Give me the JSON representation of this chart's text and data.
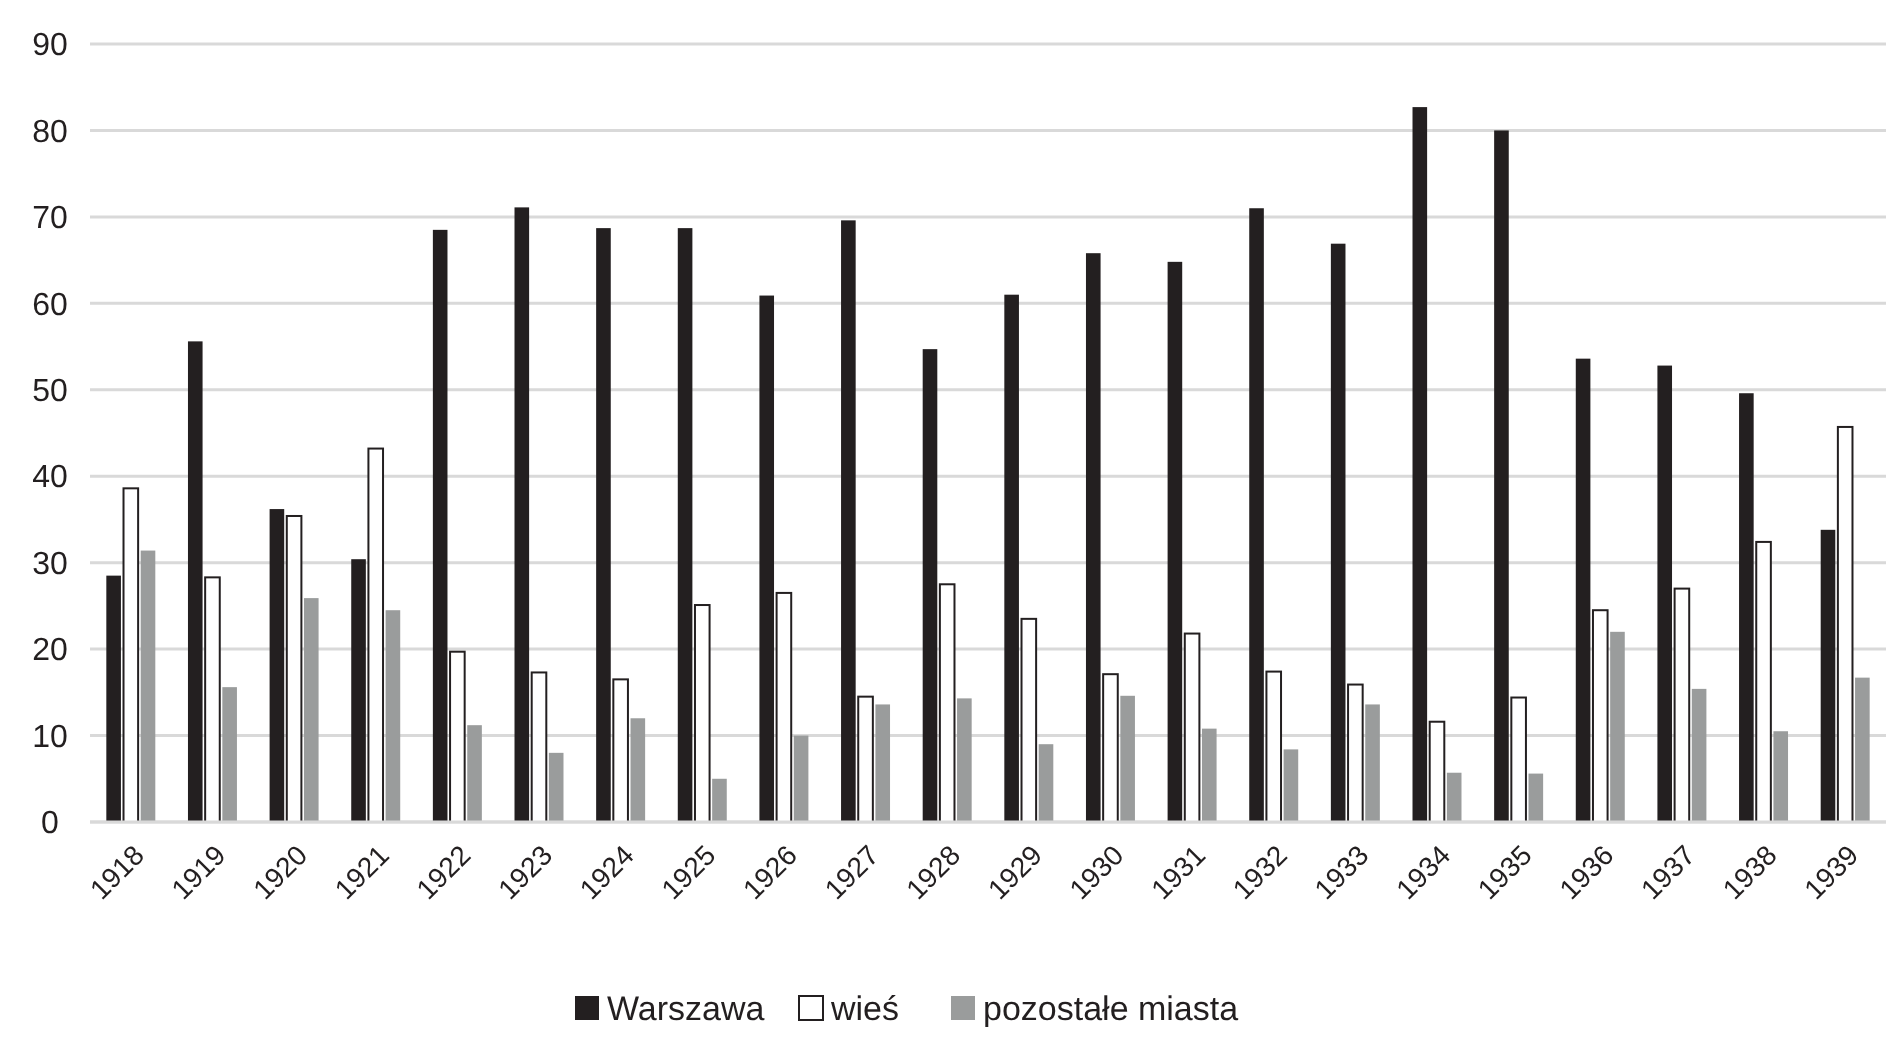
{
  "chart_data": {
    "type": "bar",
    "categories": [
      "1918",
      "1919",
      "1920",
      "1921",
      "1922",
      "1923",
      "1924",
      "1925",
      "1926",
      "1927",
      "1928",
      "1929",
      "1930",
      "1931",
      "1932",
      "1933",
      "1934",
      "1935",
      "1936",
      "1937",
      "1938",
      "1939"
    ],
    "series": [
      {
        "name": "Warszawa",
        "color": "#231f20",
        "values": [
          28.5,
          55.6,
          36.2,
          30.4,
          68.5,
          71.1,
          68.7,
          68.7,
          60.9,
          69.6,
          54.7,
          61,
          65.8,
          64.8,
          71,
          66.9,
          82.7,
          80,
          53.6,
          52.8,
          49.6,
          33.8
        ]
      },
      {
        "name": "wieś",
        "color": "#ffffff",
        "values": [
          38.6,
          28.3,
          35.4,
          43.2,
          19.7,
          17.3,
          16.5,
          25.1,
          26.5,
          14.5,
          27.5,
          23.5,
          17.1,
          21.8,
          17.4,
          15.9,
          11.6,
          14.4,
          24.5,
          27,
          32.4,
          45.7
        ]
      },
      {
        "name": "pozostałe miasta",
        "color": "#9a9c9c",
        "values": [
          31.4,
          15.6,
          25.9,
          24.5,
          11.2,
          8,
          12,
          5,
          10,
          13.6,
          14.3,
          9,
          14.6,
          10.8,
          8.4,
          13.6,
          5.7,
          5.6,
          22,
          15.4,
          10.5,
          16.7
        ]
      }
    ],
    "ylim": [
      0,
      90
    ],
    "yticks": [
      0,
      10,
      20,
      30,
      40,
      50,
      60,
      70,
      80,
      90
    ],
    "grid": "y",
    "legend": "bottom"
  }
}
